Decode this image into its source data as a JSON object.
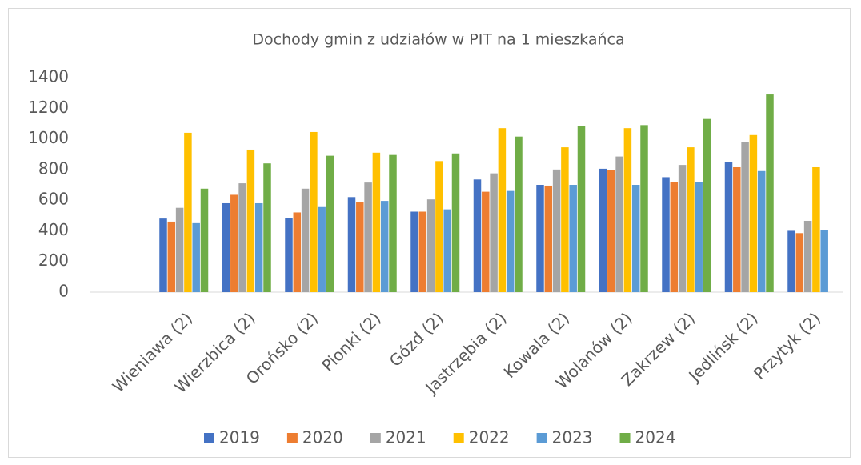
{
  "chart_data": {
    "type": "bar",
    "title": "Dochody gmin z udziałów w PIT na 1 mieszkańca",
    "categories": [
      null,
      "Wieniawa (2)",
      "Wierzbica (2)",
      "Orońsko (2)",
      "Pionki (2)",
      "Gózd (2)",
      "Jastrzębia (2)",
      "Kowala (2)",
      "Wolanów (2)",
      "Zakrzew (2)",
      "Jedlińsk (2)",
      "Przytyk (2)"
    ],
    "series": [
      {
        "name": "2019",
        "color": "#4472c4",
        "values": [
          null,
          480,
          580,
          485,
          620,
          525,
          735,
          700,
          805,
          750,
          850,
          400
        ]
      },
      {
        "name": "2020",
        "color": "#ed7d31",
        "values": [
          null,
          460,
          635,
          520,
          585,
          525,
          655,
          695,
          795,
          720,
          815,
          385
        ]
      },
      {
        "name": "2021",
        "color": "#a5a5a5",
        "values": [
          null,
          550,
          710,
          675,
          715,
          605,
          775,
          800,
          885,
          830,
          980,
          465
        ]
      },
      {
        "name": "2022",
        "color": "#ffc000",
        "values": [
          null,
          1040,
          930,
          1045,
          910,
          855,
          1070,
          945,
          1070,
          945,
          1025,
          815
        ]
      },
      {
        "name": "2023",
        "color": "#5b9bd5",
        "values": [
          null,
          450,
          580,
          555,
          595,
          540,
          660,
          700,
          700,
          720,
          790,
          405
        ]
      },
      {
        "name": "2024",
        "color": "#70ad47",
        "values": [
          null,
          675,
          840,
          890,
          895,
          905,
          1015,
          1085,
          1090,
          1130,
          1290,
          null
        ]
      }
    ],
    "ylim": [
      0,
      1400
    ],
    "yticks": [
      0,
      200,
      400,
      600,
      800,
      1000,
      1200,
      1400
    ],
    "grid": false,
    "legend": "bottom"
  }
}
